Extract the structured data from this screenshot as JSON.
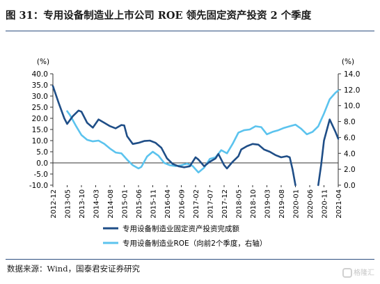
{
  "figure_title": "图 31：专用设备制造业上市公司 ROE 领先固定资产投资 2 个季度",
  "source_text": "数据来源：Wind，国泰君安证券研究",
  "watermark_text": "格隆汇",
  "chart_data": {
    "type": "line",
    "title": "",
    "left_axis": {
      "unit_label": "(%)",
      "range": [
        -10,
        40
      ],
      "ticks": [
        "40.0",
        "35.0",
        "30.0",
        "25.0",
        "20.0",
        "15.0",
        "10.0",
        "5.0",
        "0.0",
        "-5.0",
        "-10.0"
      ]
    },
    "right_axis": {
      "unit_label": "(%)",
      "range": [
        0,
        14
      ],
      "ticks": [
        "14.0",
        "12.0",
        "10.0",
        "8.0",
        "6.0",
        "4.0",
        "2.0",
        "0.0"
      ]
    },
    "x_ticks": [
      "2012-12",
      "2013-05",
      "2013-10",
      "2014-03",
      "2014-08",
      "2015-01",
      "2015-06",
      "2015-11",
      "2016-04",
      "2016-09",
      "2017-02",
      "2017-07",
      "2017-12",
      "2018-05",
      "2018-10",
      "2019-03",
      "2019-08",
      "2020-01",
      "2020-06",
      "2020-11",
      "2021-04"
    ],
    "grid": false,
    "legend_position": "bottom-center",
    "series": [
      {
        "name": "专用设备制造业固定资产投资完成额",
        "axis": "left",
        "color": "#1f4e87",
        "values": [
          [
            "2012-12",
            34.5
          ],
          [
            "2013-02",
            27.0
          ],
          [
            "2013-04",
            20.0
          ],
          [
            "2013-05",
            17.5
          ],
          [
            "2013-07",
            21.0
          ],
          [
            "2013-09",
            23.5
          ],
          [
            "2013-10",
            23.0
          ],
          [
            "2013-12",
            18.0
          ],
          [
            "2014-02",
            15.8
          ],
          [
            "2014-04",
            19.5
          ],
          [
            "2014-06",
            18.0
          ],
          [
            "2014-08",
            16.5
          ],
          [
            "2014-10",
            15.5
          ],
          [
            "2014-12",
            17.0
          ],
          [
            "2015-01",
            16.8
          ],
          [
            "2015-02",
            12.0
          ],
          [
            "2015-04",
            8.5
          ],
          [
            "2015-06",
            9.0
          ],
          [
            "2015-08",
            9.8
          ],
          [
            "2015-10",
            10.0
          ],
          [
            "2015-12",
            9.0
          ],
          [
            "2016-02",
            6.8
          ],
          [
            "2016-04",
            2.0
          ],
          [
            "2016-06",
            -0.5
          ],
          [
            "2016-08",
            -1.5
          ],
          [
            "2016-10",
            -2.0
          ],
          [
            "2016-12",
            -1.5
          ],
          [
            "2017-02",
            2.5
          ],
          [
            "2017-03",
            1.5
          ],
          [
            "2017-05",
            -1.5
          ],
          [
            "2017-07",
            0.5
          ],
          [
            "2017-09",
            2.0
          ],
          [
            "2017-10",
            4.0
          ],
          [
            "2017-12",
            -1.0
          ],
          [
            "2018-01",
            -2.5
          ],
          [
            "2018-03",
            0.5
          ],
          [
            "2018-05",
            3.0
          ],
          [
            "2018-06",
            6.0
          ],
          [
            "2018-08",
            7.5
          ],
          [
            "2018-10",
            8.5
          ],
          [
            "2018-12",
            8.2
          ],
          [
            "2019-02",
            6.0
          ],
          [
            "2019-04",
            5.0
          ],
          [
            "2019-06",
            3.5
          ],
          [
            "2019-08",
            2.5
          ],
          [
            "2019-10",
            3.0
          ],
          [
            "2019-11",
            2.5
          ],
          [
            "2019-12",
            -3.0
          ],
          [
            "2020-01",
            -10.0
          ]
        ],
        "values_segment_2": [
          [
            "2020-09",
            -10.0
          ],
          [
            "2020-10",
            -1.0
          ],
          [
            "2020-11",
            10.0
          ],
          [
            "2021-01",
            19.5
          ],
          [
            "2021-03",
            14.0
          ],
          [
            "2021-04",
            10.8
          ]
        ]
      },
      {
        "name": "专用设备制造业ROE（向前2个季度，右轴）",
        "axis": "right",
        "color": "#5bc3ee",
        "values": [
          [
            "2013-05",
            9.3
          ],
          [
            "2013-06",
            8.8
          ],
          [
            "2013-08",
            7.5
          ],
          [
            "2013-10",
            6.3
          ],
          [
            "2013-12",
            5.7
          ],
          [
            "2014-02",
            5.5
          ],
          [
            "2014-04",
            5.6
          ],
          [
            "2014-06",
            5.2
          ],
          [
            "2014-08",
            4.6
          ],
          [
            "2014-10",
            4.1
          ],
          [
            "2014-12",
            4.0
          ],
          [
            "2015-02",
            3.2
          ],
          [
            "2015-04",
            2.5
          ],
          [
            "2015-06",
            2.1
          ],
          [
            "2015-07",
            2.3
          ],
          [
            "2015-09",
            3.6
          ],
          [
            "2015-11",
            4.2
          ],
          [
            "2016-01",
            3.7
          ],
          [
            "2016-03",
            2.8
          ],
          [
            "2016-05",
            2.5
          ],
          [
            "2016-07",
            2.4
          ],
          [
            "2016-09",
            2.5
          ],
          [
            "2016-11",
            2.7
          ],
          [
            "2017-01",
            2.4
          ],
          [
            "2017-03",
            1.6
          ],
          [
            "2017-05",
            2.2
          ],
          [
            "2017-07",
            3.3
          ],
          [
            "2017-09",
            3.5
          ],
          [
            "2017-11",
            4.4
          ],
          [
            "2018-01",
            4.0
          ],
          [
            "2018-03",
            5.2
          ],
          [
            "2018-05",
            6.6
          ],
          [
            "2018-07",
            6.9
          ],
          [
            "2018-09",
            7.0
          ],
          [
            "2018-11",
            7.4
          ],
          [
            "2019-01",
            7.3
          ],
          [
            "2019-03",
            6.4
          ],
          [
            "2019-05",
            6.7
          ],
          [
            "2019-07",
            6.9
          ],
          [
            "2019-09",
            7.2
          ],
          [
            "2019-11",
            7.4
          ],
          [
            "2020-01",
            7.6
          ],
          [
            "2020-03",
            7.1
          ],
          [
            "2020-05",
            6.4
          ],
          [
            "2020-07",
            6.7
          ],
          [
            "2020-09",
            7.4
          ],
          [
            "2020-11",
            9.0
          ],
          [
            "2021-01",
            10.8
          ],
          [
            "2021-03",
            11.6
          ],
          [
            "2021-04",
            11.9
          ]
        ]
      }
    ]
  }
}
